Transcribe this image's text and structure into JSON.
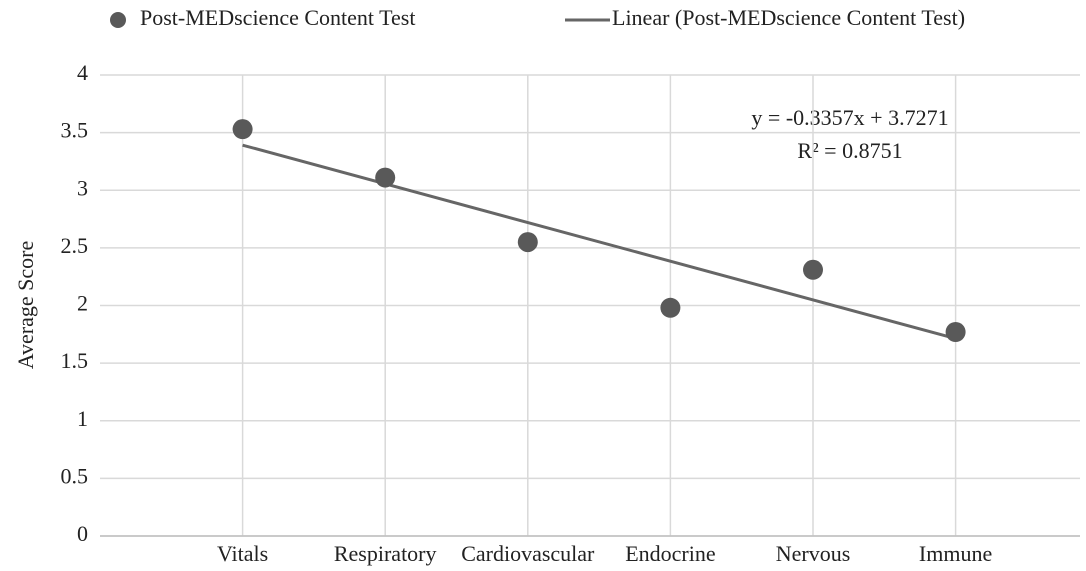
{
  "chart_data": {
    "type": "scatter",
    "y_label": "Average Score",
    "categories": [
      "Vitals",
      "Respiratory",
      "Cardiovascular",
      "Endocrine",
      "Nervous",
      "Immune"
    ],
    "series": [
      {
        "name": "Post-MEDscience Content Test",
        "color": "#595959",
        "values": [
          3.53,
          3.11,
          2.55,
          1.98,
          2.31,
          1.77
        ]
      }
    ],
    "trendline": {
      "name": "Linear (Post-MEDscience Content Test)",
      "color": "#666666",
      "slope": -0.3357,
      "intercept": 3.7271,
      "equation_label": "y = -0.3357x + 3.7271",
      "r2_label": "R² = 0.8751"
    },
    "ylim": [
      0,
      4
    ],
    "yticks": [
      0,
      0.5,
      1,
      1.5,
      2,
      2.5,
      3,
      3.5,
      4
    ],
    "grid": true
  }
}
